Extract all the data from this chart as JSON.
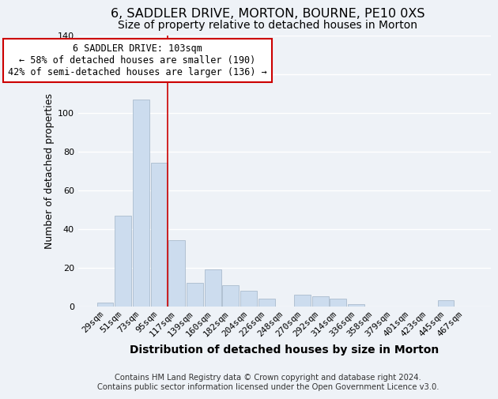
{
  "title": "6, SADDLER DRIVE, MORTON, BOURNE, PE10 0XS",
  "subtitle": "Size of property relative to detached houses in Morton",
  "xlabel": "Distribution of detached houses by size in Morton",
  "ylabel": "Number of detached properties",
  "bar_color": "#ccdcee",
  "bar_edge_color": "#aabcce",
  "categories": [
    "29sqm",
    "51sqm",
    "73sqm",
    "95sqm",
    "117sqm",
    "139sqm",
    "160sqm",
    "182sqm",
    "204sqm",
    "226sqm",
    "248sqm",
    "270sqm",
    "292sqm",
    "314sqm",
    "336sqm",
    "358sqm",
    "379sqm",
    "401sqm",
    "423sqm",
    "445sqm",
    "467sqm"
  ],
  "values": [
    2,
    47,
    107,
    74,
    34,
    12,
    19,
    11,
    8,
    4,
    0,
    6,
    5,
    4,
    1,
    0,
    0,
    0,
    0,
    3,
    0
  ],
  "vline_x": 3.5,
  "vline_color": "#cc0000",
  "annotation_text": "6 SADDLER DRIVE: 103sqm\n← 58% of detached houses are smaller (190)\n42% of semi-detached houses are larger (136) →",
  "annotation_box_color": "#ffffff",
  "annotation_box_edge_color": "#cc0000",
  "ylim": [
    0,
    140
  ],
  "yticks": [
    0,
    20,
    40,
    60,
    80,
    100,
    120,
    140
  ],
  "footer_line1": "Contains HM Land Registry data © Crown copyright and database right 2024.",
  "footer_line2": "Contains public sector information licensed under the Open Government Licence v3.0.",
  "background_color": "#eef2f7",
  "grid_color": "#ffffff",
  "title_fontsize": 11.5,
  "subtitle_fontsize": 10,
  "xlabel_fontsize": 10,
  "ylabel_fontsize": 9,
  "tick_fontsize": 8,
  "footer_fontsize": 7.2,
  "annotation_fontsize": 8.5
}
